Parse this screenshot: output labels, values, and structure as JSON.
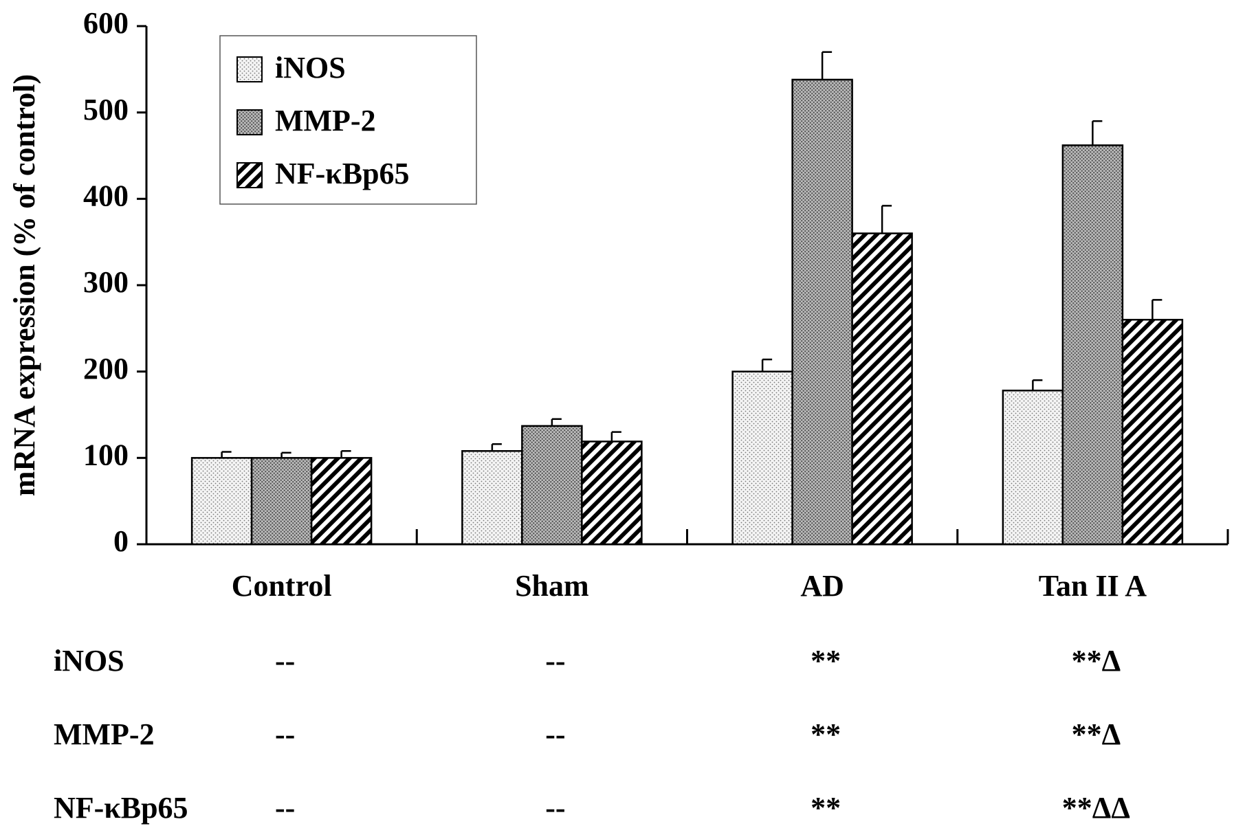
{
  "chart_data": {
    "type": "bar",
    "y_label": "mRNA expression (% of control)",
    "categories": [
      "Control",
      "Sham",
      "AD",
      "Tan II A"
    ],
    "series": [
      {
        "name": "iNOS",
        "color": "#eeeeee",
        "values": [
          100,
          108,
          200,
          178
        ],
        "errors": [
          7,
          8,
          14,
          12
        ]
      },
      {
        "name": "MMP-2",
        "color": "#a8a8a8",
        "values": [
          100,
          137,
          538,
          462
        ],
        "errors": [
          6,
          8,
          32,
          28
        ]
      },
      {
        "name": "NF-κBp65",
        "color": "#000000",
        "values": [
          100,
          119,
          360,
          260
        ],
        "errors": [
          8,
          11,
          32,
          23
        ]
      }
    ],
    "ylim": [
      0,
      600
    ],
    "yticks": [
      0,
      100,
      200,
      300,
      400,
      500,
      600
    ],
    "grid": false,
    "legend": "top-left"
  },
  "significance_table": {
    "rows": [
      {
        "label": "iNOS",
        "cells": [
          "--",
          "--",
          "**",
          "**Δ"
        ]
      },
      {
        "label": "MMP-2",
        "cells": [
          "--",
          "--",
          "**",
          "**Δ"
        ]
      },
      {
        "label": "NF-κBp65",
        "cells": [
          "--",
          "--",
          "**",
          "**ΔΔ"
        ]
      }
    ]
  }
}
